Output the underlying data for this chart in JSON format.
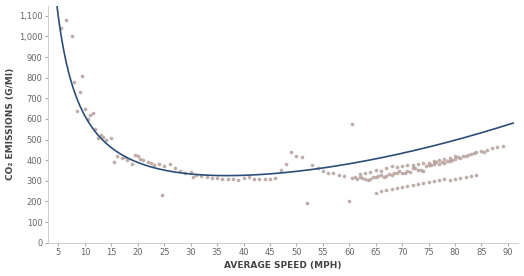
{
  "title": "",
  "xlabel": "AVERAGE SPEED (MPH)",
  "ylabel": "CO₂ EMISSIONS (G/MI)",
  "xlim": [
    3,
    92
  ],
  "ylim": [
    0,
    1150
  ],
  "xticks": [
    5,
    10,
    15,
    20,
    25,
    30,
    35,
    40,
    45,
    50,
    55,
    60,
    65,
    70,
    75,
    80,
    85,
    90
  ],
  "yticks": [
    0,
    100,
    200,
    300,
    400,
    500,
    600,
    700,
    800,
    900,
    1000,
    1100
  ],
  "curve_color": "#2b4f7a",
  "scatter_color": "#b5a09a",
  "background_color": "#ffffff",
  "scatter_points": [
    [
      5.5,
      1040
    ],
    [
      6.5,
      1080
    ],
    [
      7.5,
      1000
    ],
    [
      8.0,
      780
    ],
    [
      8.5,
      640
    ],
    [
      9.0,
      730
    ],
    [
      9.5,
      810
    ],
    [
      10.0,
      650
    ],
    [
      10.5,
      600
    ],
    [
      11.0,
      620
    ],
    [
      11.5,
      630
    ],
    [
      12.0,
      550
    ],
    [
      12.5,
      510
    ],
    [
      13.0,
      520
    ],
    [
      13.5,
      515
    ],
    [
      14.0,
      500
    ],
    [
      15.0,
      510
    ],
    [
      15.5,
      390
    ],
    [
      16.0,
      420
    ],
    [
      17.0,
      410
    ],
    [
      17.5,
      415
    ],
    [
      18.0,
      400
    ],
    [
      19.0,
      380
    ],
    [
      19.5,
      425
    ],
    [
      20.0,
      420
    ],
    [
      20.5,
      405
    ],
    [
      21.0,
      400
    ],
    [
      22.0,
      390
    ],
    [
      22.5,
      385
    ],
    [
      23.0,
      375
    ],
    [
      24.0,
      380
    ],
    [
      24.5,
      230
    ],
    [
      25.0,
      370
    ],
    [
      26.0,
      380
    ],
    [
      27.0,
      360
    ],
    [
      28.0,
      350
    ],
    [
      29.0,
      340
    ],
    [
      30.0,
      345
    ],
    [
      30.5,
      320
    ],
    [
      31.0,
      330
    ],
    [
      32.0,
      325
    ],
    [
      33.0,
      320
    ],
    [
      34.0,
      315
    ],
    [
      35.0,
      315
    ],
    [
      36.0,
      310
    ],
    [
      37.0,
      310
    ],
    [
      38.0,
      310
    ],
    [
      39.0,
      305
    ],
    [
      40.0,
      315
    ],
    [
      41.0,
      320
    ],
    [
      42.0,
      310
    ],
    [
      43.0,
      310
    ],
    [
      44.0,
      310
    ],
    [
      45.0,
      310
    ],
    [
      46.0,
      315
    ],
    [
      47.0,
      355
    ],
    [
      48.0,
      380
    ],
    [
      49.0,
      440
    ],
    [
      50.0,
      420
    ],
    [
      51.0,
      415
    ],
    [
      52.0,
      195
    ],
    [
      53.0,
      375
    ],
    [
      54.0,
      360
    ],
    [
      55.0,
      350
    ],
    [
      56.0,
      340
    ],
    [
      57.0,
      340
    ],
    [
      58.0,
      330
    ],
    [
      59.0,
      325
    ],
    [
      60.0,
      200
    ],
    [
      60.5,
      315
    ],
    [
      61.0,
      320
    ],
    [
      61.5,
      310
    ],
    [
      62.0,
      320
    ],
    [
      62.5,
      315
    ],
    [
      63.0,
      310
    ],
    [
      63.5,
      305
    ],
    [
      64.0,
      310
    ],
    [
      64.5,
      320
    ],
    [
      65.0,
      320
    ],
    [
      65.5,
      325
    ],
    [
      66.0,
      330
    ],
    [
      66.5,
      320
    ],
    [
      67.0,
      325
    ],
    [
      67.5,
      335
    ],
    [
      68.0,
      330
    ],
    [
      68.5,
      340
    ],
    [
      69.0,
      340
    ],
    [
      69.5,
      350
    ],
    [
      70.0,
      340
    ],
    [
      70.5,
      340
    ],
    [
      71.0,
      350
    ],
    [
      71.5,
      345
    ],
    [
      72.0,
      360
    ],
    [
      72.5,
      360
    ],
    [
      73.0,
      355
    ],
    [
      73.5,
      355
    ],
    [
      74.0,
      350
    ],
    [
      74.5,
      370
    ],
    [
      75.0,
      375
    ],
    [
      75.5,
      375
    ],
    [
      76.0,
      380
    ],
    [
      76.5,
      390
    ],
    [
      77.0,
      380
    ],
    [
      77.5,
      390
    ],
    [
      78.0,
      385
    ],
    [
      78.5,
      395
    ],
    [
      79.0,
      395
    ],
    [
      79.5,
      400
    ],
    [
      80.0,
      405
    ],
    [
      80.5,
      415
    ],
    [
      81.0,
      410
    ],
    [
      81.5,
      420
    ],
    [
      82.0,
      420
    ],
    [
      82.5,
      425
    ],
    [
      83.0,
      430
    ],
    [
      83.5,
      435
    ],
    [
      84.0,
      440
    ],
    [
      85.0,
      445
    ],
    [
      85.5,
      440
    ],
    [
      86.0,
      450
    ],
    [
      87.0,
      460
    ],
    [
      88.0,
      465
    ],
    [
      89.0,
      470
    ],
    [
      60.5,
      575
    ],
    [
      62.0,
      335
    ],
    [
      63.0,
      340
    ],
    [
      64.0,
      345
    ],
    [
      65.0,
      355
    ],
    [
      66.0,
      350
    ],
    [
      67.0,
      360
    ],
    [
      68.0,
      370
    ],
    [
      69.0,
      365
    ],
    [
      70.0,
      370
    ],
    [
      71.0,
      375
    ],
    [
      72.0,
      375
    ],
    [
      73.0,
      380
    ],
    [
      74.0,
      385
    ],
    [
      75.0,
      385
    ],
    [
      76.0,
      395
    ],
    [
      77.0,
      400
    ],
    [
      78.0,
      405
    ],
    [
      79.0,
      410
    ],
    [
      80.0,
      420
    ],
    [
      65.0,
      240
    ],
    [
      66.0,
      250
    ],
    [
      67.0,
      255
    ],
    [
      68.0,
      260
    ],
    [
      69.0,
      265
    ],
    [
      70.0,
      270
    ],
    [
      71.0,
      275
    ],
    [
      72.0,
      280
    ],
    [
      73.0,
      285
    ],
    [
      74.0,
      290
    ],
    [
      75.0,
      295
    ],
    [
      76.0,
      300
    ],
    [
      77.0,
      305
    ],
    [
      78.0,
      310
    ],
    [
      79.0,
      305
    ],
    [
      80.0,
      310
    ],
    [
      81.0,
      315
    ],
    [
      82.0,
      320
    ],
    [
      83.0,
      325
    ],
    [
      84.0,
      330
    ]
  ],
  "curve_a": 4800,
  "curve_b": 0.048,
  "curve_c": 130
}
